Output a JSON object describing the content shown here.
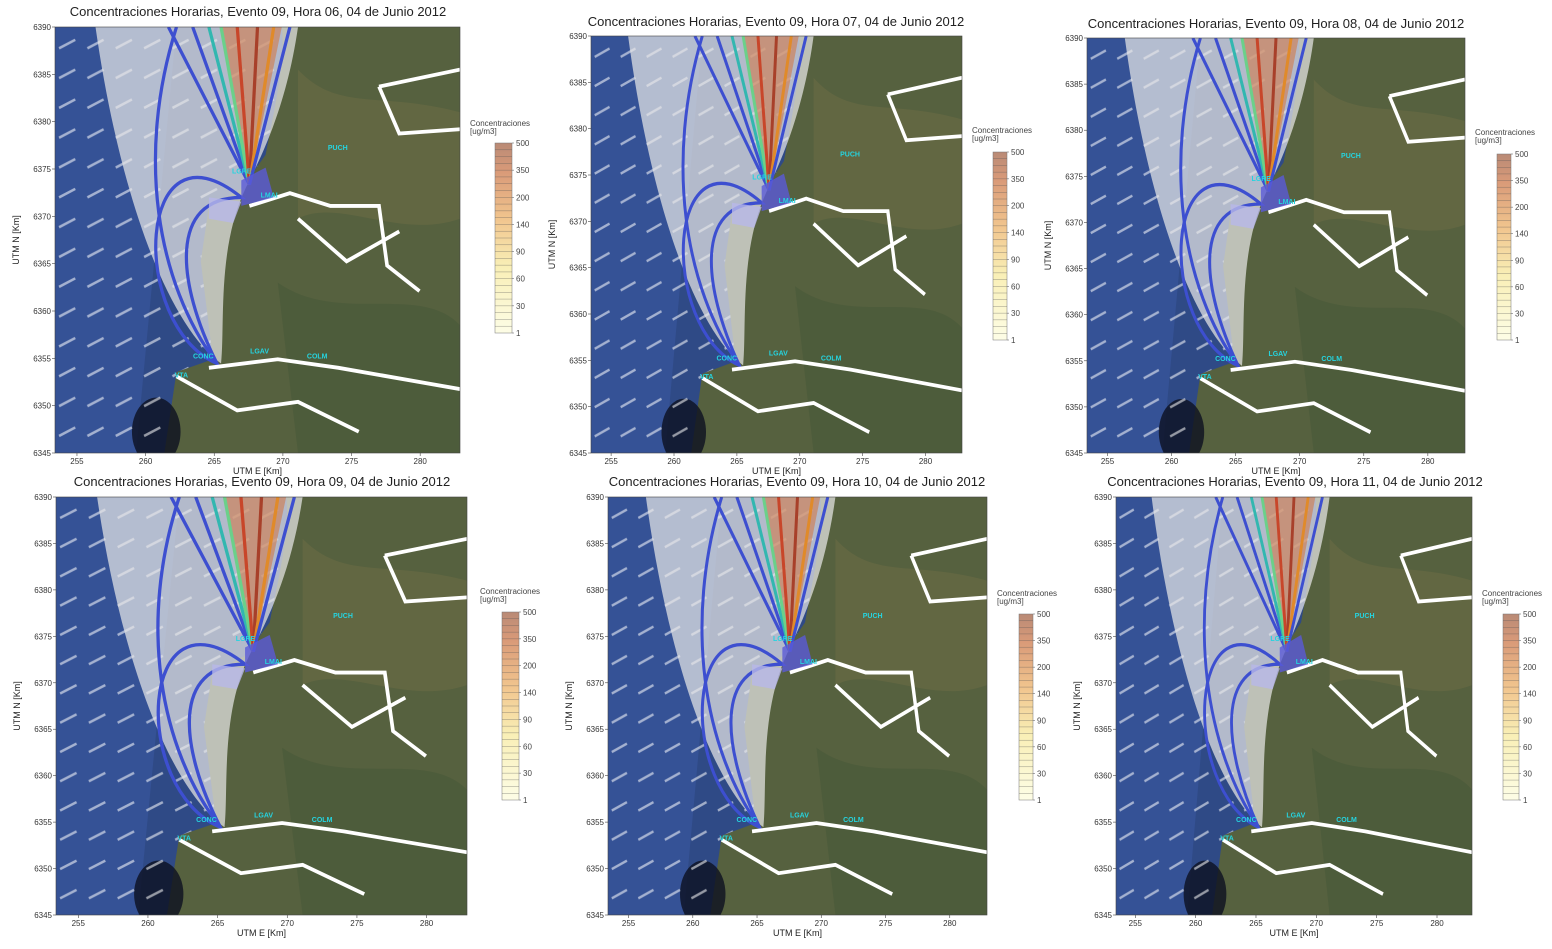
{
  "panels": [
    {
      "title": "Concentraciones Horarias, Evento 09, Hora 06, 04 de Junio 2012"
    },
    {
      "title": "Concentraciones Horarias, Evento 09, Hora 07, 04 de Junio 2012"
    },
    {
      "title": "Concentraciones Horarias, Evento 09, Hora 08, 04 de Junio 2012"
    },
    {
      "title": "Concentraciones Horarias, Evento 09, Hora 09, 04 de Junio 2012"
    },
    {
      "title": "Concentraciones Horarias, Evento 09, Hora 10, 04 de Junio 2012"
    },
    {
      "title": "Concentraciones Horarias, Evento 09, Hora 11, 04 de Junio 2012"
    }
  ],
  "axes": {
    "xlabel": "UTM E [Km]",
    "ylabel": "UTM N [Km]",
    "xlim": [
      253.4,
      282.9
    ],
    "ylim": [
      6345,
      6390
    ],
    "xticks": [
      255,
      260,
      265,
      270,
      275,
      280
    ],
    "yticks": [
      6345,
      6350,
      6355,
      6360,
      6365,
      6370,
      6375,
      6380,
      6385,
      6390
    ]
  },
  "colorbar": {
    "title": [
      "Concentraciones",
      "[ug/m3]"
    ],
    "levels": [
      1,
      30,
      60,
      90,
      140,
      200,
      350,
      500
    ]
  },
  "stations": [
    "PUCH",
    "LGRE",
    "LMAI",
    "LGAV",
    "COLM",
    "CONC",
    "VTA"
  ]
}
